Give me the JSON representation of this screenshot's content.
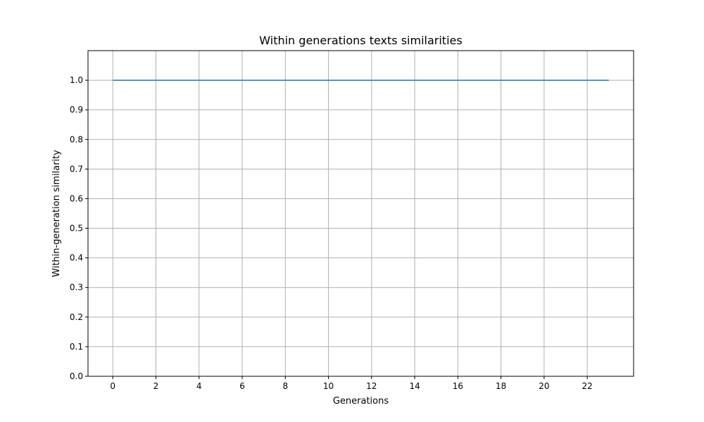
{
  "chart_data": {
    "type": "line",
    "title": "Within generations texts similarities",
    "xlabel": "Generations",
    "ylabel": "Within-generation similarity",
    "xlim": [
      -1.15,
      24.15
    ],
    "ylim": [
      0.0,
      1.1
    ],
    "xticks": [
      0,
      2,
      4,
      6,
      8,
      10,
      12,
      14,
      16,
      18,
      20,
      22
    ],
    "yticks": [
      0.0,
      0.1,
      0.2,
      0.3,
      0.4,
      0.5,
      0.6,
      0.7,
      0.8,
      0.9,
      1.0
    ],
    "grid": true,
    "series": [
      {
        "color": "#1f77b4",
        "x": [
          0,
          1,
          2,
          3,
          4,
          5,
          6,
          7,
          8,
          9,
          10,
          11,
          12,
          13,
          14,
          15,
          16,
          17,
          18,
          19,
          20,
          21,
          22,
          23
        ],
        "y": [
          1.0,
          1.0,
          1.0,
          1.0,
          1.0,
          1.0,
          1.0,
          1.0,
          1.0,
          1.0,
          1.0,
          1.0,
          1.0,
          1.0,
          1.0,
          1.0,
          1.0,
          1.0,
          1.0,
          1.0,
          1.0,
          1.0,
          1.0,
          1.0
        ]
      }
    ]
  }
}
